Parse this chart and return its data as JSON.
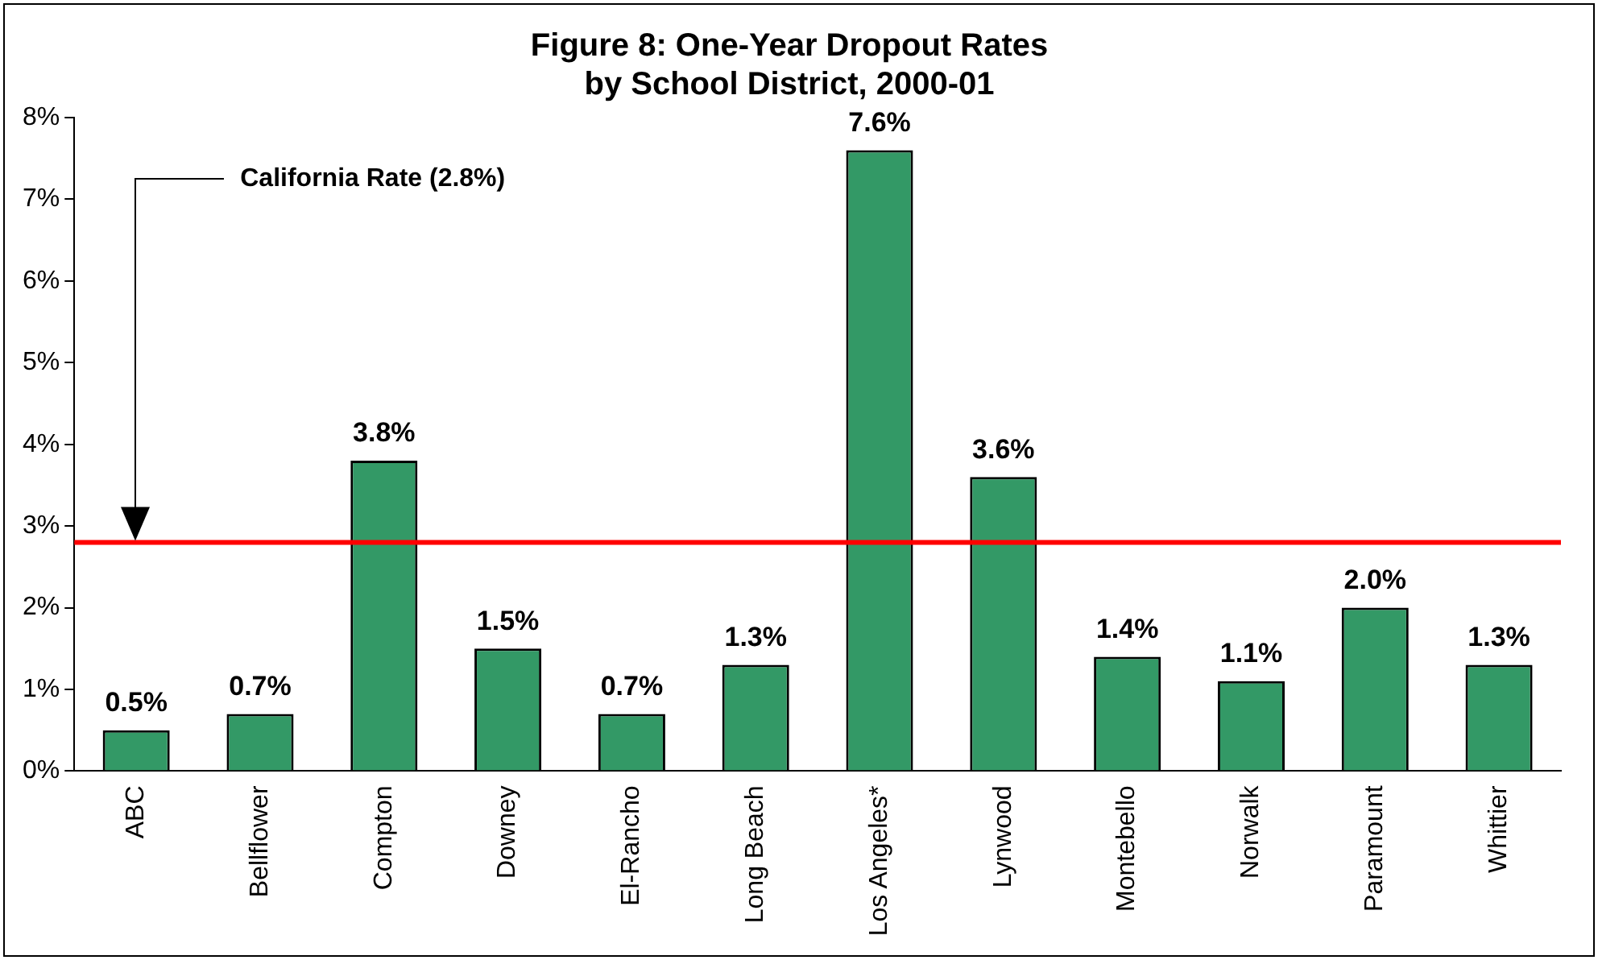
{
  "chart_data": {
    "type": "bar",
    "title": [
      "Figure 8: One-Year Dropout Rates",
      "by School District, 2000-01"
    ],
    "categories": [
      "ABC",
      "Bellflower",
      "Compton",
      "Downey",
      "El-Rancho",
      "Long Beach",
      "Los Angeles*",
      "Lynwood",
      "Montebello",
      "Norwalk",
      "Paramount",
      "Whittier"
    ],
    "values": [
      0.5,
      0.7,
      3.8,
      1.5,
      0.7,
      1.3,
      7.6,
      3.6,
      1.4,
      1.1,
      2.0,
      1.3
    ],
    "value_labels": [
      "0.5%",
      "0.7%",
      "3.8%",
      "1.5%",
      "0.7%",
      "1.3%",
      "7.6%",
      "3.6%",
      "1.4%",
      "1.1%",
      "2.0%",
      "1.3%"
    ],
    "color": "#339966",
    "ylim": [
      0,
      8
    ],
    "yticks": [
      {
        "value": 0,
        "label": "0%"
      },
      {
        "value": 1,
        "label": "1%"
      },
      {
        "value": 2,
        "label": "2%"
      },
      {
        "value": 3,
        "label": "3%"
      },
      {
        "value": 4,
        "label": "4%"
      },
      {
        "value": 5,
        "label": "5%"
      },
      {
        "value": 6,
        "label": "6%"
      },
      {
        "value": 7,
        "label": "7%"
      },
      {
        "value": 8,
        "label": "8%"
      }
    ],
    "grid": false,
    "legend": false,
    "ref_lines": [
      {
        "axis": "y",
        "value": 2.8,
        "color": "#ff0000"
      }
    ],
    "annotations": [
      "California Rate (2.8%)"
    ]
  }
}
